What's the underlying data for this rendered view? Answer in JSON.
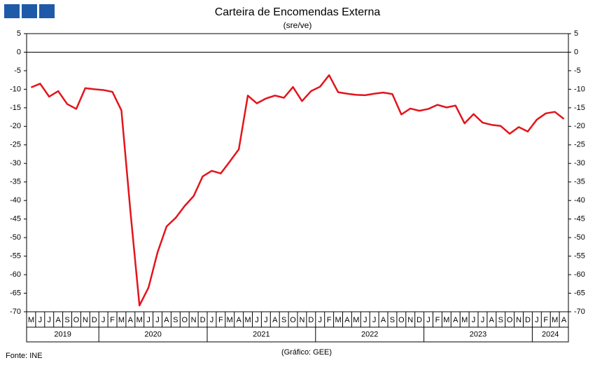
{
  "chart_data": {
    "type": "line",
    "title": "Carteira de Encomendas Externa",
    "subtitle": "(sre/ve)",
    "source": "Fonte: INE",
    "credit": "(Gráfico: GEE)",
    "categories": [
      "M",
      "J",
      "J",
      "A",
      "S",
      "O",
      "N",
      "D",
      "J",
      "F",
      "M",
      "A",
      "M",
      "J",
      "J",
      "A",
      "S",
      "O",
      "N",
      "D",
      "J",
      "F",
      "M",
      "A",
      "M",
      "J",
      "J",
      "A",
      "S",
      "O",
      "N",
      "D",
      "J",
      "F",
      "M",
      "A",
      "M",
      "J",
      "J",
      "A",
      "S",
      "O",
      "N",
      "D",
      "J",
      "F",
      "M",
      "A",
      "M",
      "J",
      "J",
      "A",
      "S",
      "O",
      "N",
      "D",
      "J",
      "F",
      "M",
      "A"
    ],
    "years": [
      "2019",
      "2020",
      "2021",
      "2022",
      "2023",
      "2024"
    ],
    "series": [
      {
        "color": "#e3141c",
        "values": [
          -9.5,
          -8.5,
          -12,
          -10.5,
          -14,
          -15.3,
          -9.7,
          -10,
          -10.2,
          -10.7,
          -15.7,
          -43,
          -68.3,
          -63.5,
          -54,
          -47,
          -44.7,
          -41.5,
          -38.8,
          -33.5,
          -32,
          -32.7,
          -29.5,
          -26.2,
          -11.7,
          -13.8,
          -12.5,
          -11.7,
          -12.3,
          -9.4,
          -13.2,
          -10.5,
          -9.3,
          -6.2,
          -10.8,
          -11.2,
          -11.5,
          -11.6,
          -11.2,
          -10.9,
          -11.3,
          -16.8,
          -15.2,
          -15.8,
          -15.3,
          -14.2,
          -14.9,
          -14.4,
          -19.2,
          -16.7,
          -19,
          -19.6,
          -19.9,
          -22,
          -20.2,
          -21.4,
          -18.2,
          -16.5,
          -16.1,
          -18
        ]
      }
    ],
    "ylim": [
      -70,
      5
    ],
    "yticks": [
      5,
      0,
      -5,
      -10,
      -15,
      -20,
      -25,
      -30,
      -35,
      -40,
      -45,
      -50,
      -55,
      -60,
      -65,
      -70
    ],
    "y2lim": [
      -70,
      5
    ],
    "y2ticks": [
      5,
      0,
      -5,
      -10,
      -15,
      -20,
      -25,
      -30,
      -35,
      -40,
      -45,
      -50,
      -55,
      -60,
      -65,
      -70
    ]
  }
}
